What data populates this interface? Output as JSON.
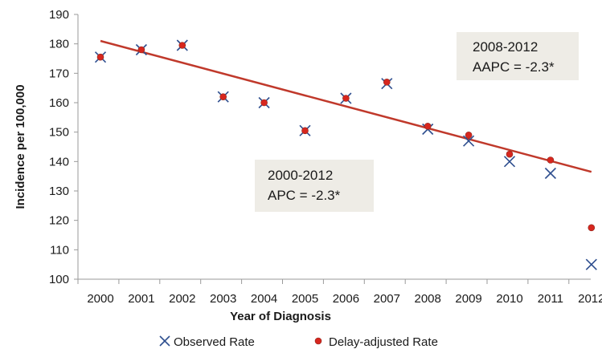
{
  "chart_data": {
    "type": "scatter",
    "title": "",
    "xlabel": "Year of Diagnosis",
    "ylabel": "Incidence per 100,000",
    "ylim": [
      100,
      190
    ],
    "yticks": [
      100,
      110,
      120,
      130,
      140,
      150,
      160,
      170,
      180,
      190
    ],
    "categories": [
      "2000",
      "2001",
      "2002",
      "2003",
      "2004",
      "2005",
      "2006",
      "2007",
      "2008",
      "2009",
      "2010",
      "2011",
      "2012"
    ],
    "grid": false,
    "legend_position": "bottom",
    "series": [
      {
        "name": "Observed Rate",
        "marker": "x",
        "color": "#2f4f8f",
        "values": [
          175.5,
          178,
          179.5,
          162,
          160,
          150.5,
          161.5,
          166.5,
          151,
          147,
          140,
          136,
          105
        ]
      },
      {
        "name": "Delay-adjusted Rate",
        "marker": "circle",
        "color": "#d7261e",
        "values": [
          175.5,
          178,
          179.5,
          162,
          160,
          150.5,
          161.5,
          167,
          152,
          149,
          142.5,
          140.5,
          117.5
        ]
      }
    ],
    "trend_line": {
      "color": "#c0392b",
      "values": [
        181,
        136.5
      ],
      "range": [
        "2000",
        "2012"
      ]
    },
    "annotations": [
      {
        "line1": "2008-2012",
        "line2": "AAPC = -2.3*"
      },
      {
        "line1": "2000-2012",
        "line2": "APC = -2.3*"
      }
    ]
  }
}
